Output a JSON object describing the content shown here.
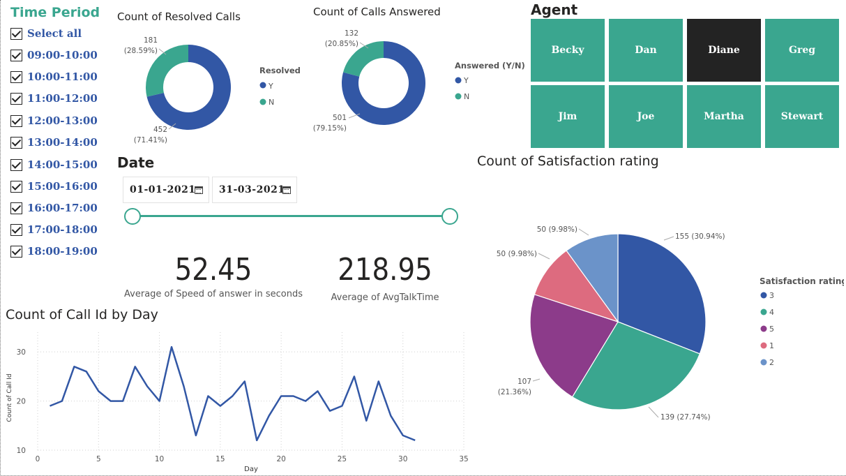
{
  "time_period": {
    "title": "Time Period",
    "items": [
      "Select all",
      "09:00-10:00",
      "10:00-11:00",
      "11:00-12:00",
      "12:00-13:00",
      "13:00-14:00",
      "14:00-15:00",
      "15:00-16:00",
      "16:00-17:00",
      "17:00-18:00",
      "18:00-19:00"
    ]
  },
  "resolved_chart": {
    "title": "Count of Resolved Calls",
    "legend_title": "Resolved",
    "legend": [
      "Y",
      "N"
    ],
    "label_y_count": "452",
    "label_y_pct": "(71.41%)",
    "label_n_count": "181",
    "label_n_pct": "(28.59%)"
  },
  "answered_chart": {
    "title": "Count of Calls Answered",
    "legend_title": "Answered (Y/N)",
    "legend": [
      "Y",
      "N"
    ],
    "label_y_count": "501",
    "label_y_pct": "(79.15%)",
    "label_n_count": "132",
    "label_n_pct": "(20.85%)"
  },
  "agent": {
    "title": "Agent",
    "agents": [
      "Becky",
      "Dan",
      "Diane",
      "Greg",
      "Jim",
      "Joe",
      "Martha",
      "Stewart"
    ],
    "selected": "Diane"
  },
  "date": {
    "title": "Date",
    "start": "01-01-2021",
    "end": "31-03-2021"
  },
  "cards": {
    "speed_value": "52.45",
    "speed_label": "Average of Speed of answer in seconds",
    "talk_value": "218.95",
    "talk_label": "Average of AvgTalkTime"
  },
  "satisfaction_chart": {
    "title": "Count of Satisfaction rating",
    "legend_title": "Satisfaction rating",
    "legend": [
      "3",
      "4",
      "5",
      "1",
      "2"
    ],
    "labels": [
      "155 (30.94%)",
      "139 (27.74%)",
      "107",
      "(21.36%)",
      "50 (9.98%)",
      "50 (9.98%)"
    ]
  },
  "day_chart": {
    "title": "Count of Call Id by Day",
    "xlabel": "Day",
    "ylabel": "Count of Call Id",
    "xticks": [
      "0",
      "5",
      "10",
      "15",
      "20",
      "25",
      "30",
      "35"
    ],
    "yticks": [
      "10",
      "20",
      "30"
    ]
  },
  "colors": {
    "blue": "#3257a5",
    "teal": "#3aa68f",
    "purple": "#8c3b8a",
    "pink": "#dd6b7f",
    "light_blue": "#6b93c9",
    "tile_selected": "#232323"
  },
  "chart_data": [
    {
      "type": "pie",
      "title": "Count of Resolved Calls",
      "legend_title": "Resolved",
      "categories": [
        "Y",
        "N"
      ],
      "values": [
        452,
        181
      ],
      "percentages": [
        71.41,
        28.59
      ],
      "donut": true
    },
    {
      "type": "pie",
      "title": "Count of Calls Answered",
      "legend_title": "Answered (Y/N)",
      "categories": [
        "Y",
        "N"
      ],
      "values": [
        501,
        132
      ],
      "percentages": [
        79.15,
        20.85
      ],
      "donut": true
    },
    {
      "type": "pie",
      "title": "Count of Satisfaction rating",
      "legend_title": "Satisfaction rating",
      "categories": [
        "3",
        "4",
        "5",
        "1",
        "2"
      ],
      "values": [
        155,
        139,
        107,
        50,
        50
      ],
      "percentages": [
        30.94,
        27.74,
        21.36,
        9.98,
        9.98
      ]
    },
    {
      "type": "line",
      "title": "Count of Call Id by Day",
      "xlabel": "Day",
      "ylabel": "Count of Call Id",
      "xlim": [
        0,
        35
      ],
      "ylim": [
        10,
        34
      ],
      "x": [
        1,
        2,
        3,
        4,
        5,
        6,
        7,
        8,
        9,
        10,
        11,
        12,
        13,
        14,
        15,
        16,
        17,
        18,
        19,
        20,
        21,
        22,
        23,
        24,
        25,
        26,
        27,
        28,
        29,
        30,
        31
      ],
      "y": [
        19,
        20,
        27,
        26,
        22,
        20,
        20,
        27,
        23,
        20,
        31,
        23,
        13,
        21,
        19,
        21,
        24,
        12,
        17,
        21,
        21,
        20,
        22,
        18,
        19,
        25,
        16,
        24,
        17,
        13,
        12
      ],
      "grid": true
    }
  ]
}
